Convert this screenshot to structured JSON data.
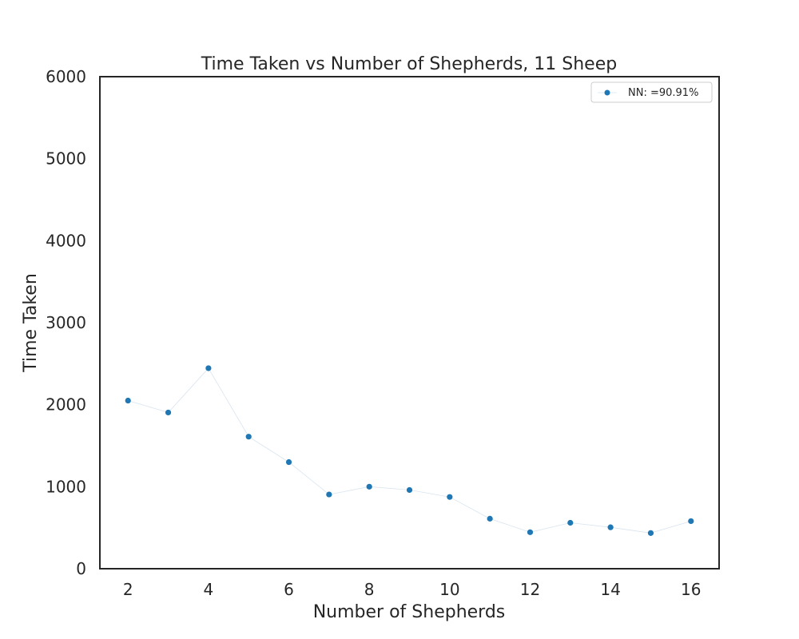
{
  "chart_data": {
    "type": "line",
    "title": "Time Taken vs Number of Shepherds, 11 Sheep",
    "xlabel": "Number of Shepherds",
    "ylabel": "Time Taken",
    "xlim": [
      1.3,
      16.7
    ],
    "ylim": [
      0,
      6000
    ],
    "xticks": [
      2,
      4,
      6,
      8,
      10,
      12,
      14,
      16
    ],
    "yticks": [
      0,
      1000,
      2000,
      3000,
      4000,
      5000,
      6000
    ],
    "grid": false,
    "legend_position": "top-right",
    "series": [
      {
        "name": "NN: =90.91%",
        "color": "#1f77b4",
        "x": [
          2,
          3,
          4,
          5,
          6,
          7,
          8,
          9,
          10,
          11,
          12,
          13,
          14,
          15,
          16
        ],
        "y": [
          2050,
          1905,
          2445,
          1610,
          1300,
          905,
          1000,
          960,
          875,
          610,
          445,
          560,
          505,
          435,
          580
        ]
      }
    ]
  }
}
